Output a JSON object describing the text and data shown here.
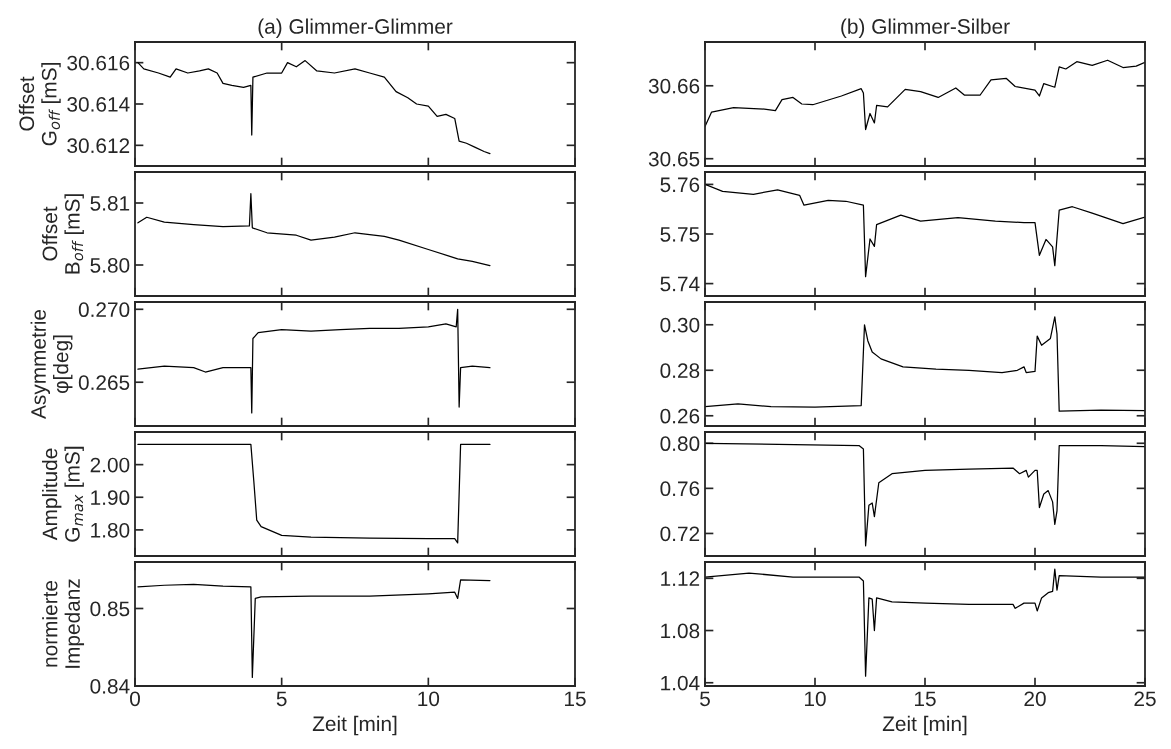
{
  "chart_data": [
    {
      "type": "line",
      "title": "(a) Glimmer-Glimmer",
      "ylabel": "Offset\nG$_{off}$ [mS]",
      "color": "#000000",
      "tick_labels": "y",
      "xlim": [
        0,
        15
      ],
      "xticks": [
        0,
        5,
        10,
        15
      ],
      "ylim": [
        30.611,
        30.617
      ],
      "yticks": [
        30.612,
        30.614,
        30.616
      ],
      "x": [
        0.1,
        0.3,
        0.8,
        1.2,
        1.4,
        1.8,
        2.2,
        2.5,
        2.8,
        3.0,
        3.3,
        3.7,
        3.95,
        3.98,
        4.02,
        4.5,
        5.0,
        5.2,
        5.5,
        5.8,
        6.2,
        6.8,
        7.5,
        8.0,
        8.5,
        8.9,
        9.3,
        9.6,
        10.0,
        10.3,
        10.6,
        10.9,
        11.05,
        11.3,
        11.6,
        11.9,
        12.1
      ],
      "values": [
        30.616,
        30.6157,
        30.6155,
        30.6153,
        30.6157,
        30.6155,
        30.6156,
        30.6157,
        30.6155,
        30.615,
        30.6149,
        30.6148,
        30.6149,
        30.6125,
        30.6153,
        30.6155,
        30.6155,
        30.616,
        30.6158,
        30.6161,
        30.6156,
        30.6155,
        30.6157,
        30.6155,
        30.6153,
        30.6146,
        30.6143,
        30.614,
        30.6139,
        30.6134,
        30.6135,
        30.6133,
        30.6122,
        30.6121,
        30.6119,
        30.6117,
        30.6116
      ]
    },
    {
      "type": "line",
      "ylabel": "Offset\nB$_{off}$ [mS]",
      "color": "#000000",
      "tick_labels": "y",
      "xlim": [
        0,
        15
      ],
      "xticks": [
        0,
        5,
        10,
        15
      ],
      "ylim": [
        5.795,
        5.815
      ],
      "yticks": [
        {
          "value": 5.8,
          "label": "5.80"
        },
        5.81
      ],
      "x": [
        0.1,
        0.4,
        1,
        2,
        3,
        3.9,
        3.95,
        4.0,
        4.5,
        5.5,
        6,
        6.8,
        7.5,
        8.5,
        9,
        10,
        11,
        11.5,
        12.1
      ],
      "values": [
        5.8068,
        5.8077,
        5.8069,
        5.8065,
        5.8062,
        5.8063,
        5.8115,
        5.806,
        5.8052,
        5.8048,
        5.804,
        5.8045,
        5.8052,
        5.8046,
        5.804,
        5.8025,
        5.801,
        5.8006,
        5.7999
      ]
    },
    {
      "type": "line",
      "ylabel": "Asymmetrie\nφ[deg]",
      "color": "#000000",
      "tick_labels": "y",
      "xlim": [
        0,
        15
      ],
      "xticks": [
        0,
        5,
        10,
        15
      ],
      "ylim": [
        0.262,
        0.2705
      ],
      "yticks": [
        0.265,
        {
          "value": 0.27,
          "label": "0.270"
        }
      ],
      "x": [
        0.1,
        1,
        2,
        2.4,
        3,
        3.95,
        3.98,
        4.02,
        4.2,
        5,
        6,
        7,
        8,
        9,
        10,
        10.6,
        10.95,
        11.0,
        11.05,
        11.1,
        11.5,
        12.1
      ],
      "values": [
        0.2659,
        0.2661,
        0.266,
        0.2657,
        0.266,
        0.266,
        0.2629,
        0.268,
        0.2684,
        0.2686,
        0.2685,
        0.2686,
        0.2687,
        0.2687,
        0.2688,
        0.269,
        0.2688,
        0.27,
        0.2633,
        0.266,
        0.2661,
        0.266
      ]
    },
    {
      "type": "line",
      "ylabel": "Amplitude\nG$_{max}$ [mS]",
      "color": "#000000",
      "tick_labels": "y",
      "xlim": [
        0,
        15
      ],
      "xticks": [
        0,
        5,
        10,
        15
      ],
      "ylim": [
        1.72,
        2.1
      ],
      "yticks": [
        {
          "value": 1.8,
          "label": "1.80"
        },
        {
          "value": 1.9,
          "label": "1.90"
        },
        {
          "value": 2.0,
          "label": "2.00"
        }
      ],
      "x": [
        0.1,
        2,
        3.95,
        4.05,
        4.15,
        4.3,
        5,
        6,
        8,
        10,
        10.9,
        11.0,
        11.1,
        12.1
      ],
      "values": [
        2.062,
        2.062,
        2.062,
        1.95,
        1.83,
        1.81,
        1.783,
        1.778,
        1.775,
        1.773,
        1.773,
        1.76,
        2.062,
        2.062
      ]
    },
    {
      "type": "line",
      "ylabel": "normierte\nImpedanz",
      "xlabel": "Zeit [min]",
      "color": "#000000",
      "xlim": [
        0,
        15
      ],
      "xticks": [
        0,
        5,
        10,
        15
      ],
      "ylim": [
        0.84,
        0.856
      ],
      "yticks": [
        0.84,
        0.85
      ],
      "x": [
        0.1,
        1,
        2,
        3,
        3.95,
        4.0,
        4.1,
        4.3,
        6,
        8,
        10,
        10.9,
        11.0,
        11.1,
        12.1
      ],
      "values": [
        0.8528,
        0.853,
        0.8531,
        0.8529,
        0.8528,
        0.8411,
        0.8513,
        0.8515,
        0.8516,
        0.8516,
        0.8519,
        0.8521,
        0.8513,
        0.8537,
        0.8536
      ]
    },
    {
      "type": "line",
      "title": "(b) Glimmer-Silber",
      "color": "#000000",
      "tick_labels": "y",
      "xlim": [
        5,
        25
      ],
      "xticks": [
        5,
        10,
        15,
        20,
        25
      ],
      "ylim": [
        30.649,
        30.666
      ],
      "yticks": [
        30.65,
        30.66
      ],
      "x": [
        5,
        5.3,
        6.3,
        7.7,
        8.2,
        8.5,
        9.0,
        9.4,
        9.9,
        11.2,
        12.1,
        12.2,
        12.3,
        12.5,
        12.7,
        12.8,
        13.3,
        14.1,
        14.8,
        15.6,
        16.4,
        16.8,
        17.5,
        18.0,
        18.7,
        19.1,
        20.0,
        20.2,
        20.4,
        20.9,
        21.1,
        21.4,
        21.9,
        22.6,
        23.3,
        24.0,
        24.6,
        25.0
      ],
      "values": [
        30.6544,
        30.6564,
        30.657,
        30.6568,
        30.6566,
        30.6581,
        30.6584,
        30.6575,
        30.6574,
        30.6586,
        30.6596,
        30.659,
        30.654,
        30.6562,
        30.6549,
        30.6573,
        30.6571,
        30.6595,
        30.6592,
        30.6584,
        30.6597,
        30.6587,
        30.6587,
        30.6608,
        30.661,
        30.6599,
        30.6594,
        30.6586,
        30.6603,
        30.6598,
        30.6626,
        30.6623,
        30.6633,
        30.6628,
        30.6635,
        30.6625,
        30.6627,
        30.6632
      ]
    },
    {
      "type": "line",
      "color": "#000000",
      "tick_labels": "y",
      "xlim": [
        5,
        25
      ],
      "xticks": [
        5,
        10,
        15,
        20,
        25
      ],
      "ylim": [
        5.7375,
        5.7625
      ],
      "yticks": [
        5.74,
        5.75,
        5.76
      ],
      "x": [
        5,
        5.8,
        7.2,
        8.3,
        9.3,
        9.5,
        10.6,
        11.4,
        12.2,
        12.3,
        12.5,
        12.7,
        12.8,
        13.9,
        14.8,
        16.5,
        18.2,
        19.5,
        20.0,
        20.2,
        20.5,
        20.8,
        20.9,
        21.1,
        21.7,
        22.6,
        24.0,
        25
      ],
      "values": [
        5.76,
        5.7586,
        5.758,
        5.7589,
        5.7578,
        5.7558,
        5.7568,
        5.7566,
        5.7558,
        5.7414,
        5.749,
        5.7475,
        5.7519,
        5.7538,
        5.7526,
        5.7533,
        5.7526,
        5.7523,
        5.7523,
        5.7457,
        5.7489,
        5.7474,
        5.7436,
        5.7548,
        5.7555,
        5.7542,
        5.7521,
        5.7534
      ]
    },
    {
      "type": "line",
      "color": "#000000",
      "tick_labels": "y",
      "xlim": [
        5,
        25
      ],
      "xticks": [
        5,
        10,
        15,
        20,
        25
      ],
      "ylim": [
        0.2555,
        0.31
      ],
      "yticks": [
        0.26,
        0.28,
        {
          "value": 0.3,
          "label": "0.30"
        }
      ],
      "x": [
        5,
        6.5,
        8,
        10,
        12.1,
        12.25,
        12.4,
        12.6,
        13,
        14,
        15.5,
        17,
        18.5,
        19.2,
        19.5,
        19.6,
        20.0,
        20.1,
        20.3,
        20.7,
        20.9,
        21.0,
        21.1,
        23,
        25
      ],
      "values": [
        0.264,
        0.2652,
        0.264,
        0.2638,
        0.2645,
        0.3,
        0.293,
        0.288,
        0.285,
        0.2815,
        0.2805,
        0.28,
        0.279,
        0.28,
        0.2815,
        0.279,
        0.2795,
        0.295,
        0.291,
        0.294,
        0.3035,
        0.296,
        0.262,
        0.2625,
        0.2623
      ]
    },
    {
      "type": "line",
      "color": "#000000",
      "tick_labels": "y",
      "xlim": [
        5,
        25
      ],
      "xticks": [
        5,
        10,
        15,
        20,
        25
      ],
      "ylim": [
        0.7,
        0.81
      ],
      "yticks": [
        0.72,
        0.76,
        {
          "value": 0.8,
          "label": "0.80"
        }
      ],
      "x": [
        5,
        12,
        12.2,
        12.3,
        12.45,
        12.6,
        12.7,
        12.9,
        13.5,
        15,
        17,
        19,
        19.3,
        19.6,
        19.7,
        20,
        20.1,
        20.2,
        20.4,
        20.6,
        20.8,
        20.9,
        21.0,
        21.1,
        23,
        25
      ],
      "values": [
        0.8,
        0.798,
        0.795,
        0.709,
        0.745,
        0.747,
        0.735,
        0.765,
        0.773,
        0.776,
        0.777,
        0.778,
        0.773,
        0.776,
        0.77,
        0.776,
        0.776,
        0.743,
        0.755,
        0.758,
        0.748,
        0.728,
        0.74,
        0.798,
        0.798,
        0.797
      ]
    },
    {
      "type": "line",
      "xlabel": "Zeit [min]",
      "color": "#000000",
      "xlim": [
        5,
        25
      ],
      "xticks": [
        5,
        10,
        15,
        20,
        25
      ],
      "ylim": [
        1.0375,
        1.1325
      ],
      "yticks": [
        1.04,
        1.08,
        1.12
      ],
      "x": [
        5,
        7,
        9,
        12,
        12.2,
        12.3,
        12.45,
        12.6,
        12.7,
        12.8,
        13.5,
        15,
        17,
        19,
        19.1,
        19.5,
        20,
        20.1,
        20.3,
        20.6,
        20.8,
        20.9,
        21.0,
        21.1,
        23,
        25
      ],
      "values": [
        1.121,
        1.124,
        1.121,
        1.121,
        1.118,
        1.045,
        1.105,
        1.104,
        1.08,
        1.105,
        1.102,
        1.101,
        1.1,
        1.1,
        1.097,
        1.101,
        1.101,
        1.095,
        1.105,
        1.109,
        1.11,
        1.127,
        1.111,
        1.122,
        1.121,
        1.121
      ]
    }
  ]
}
